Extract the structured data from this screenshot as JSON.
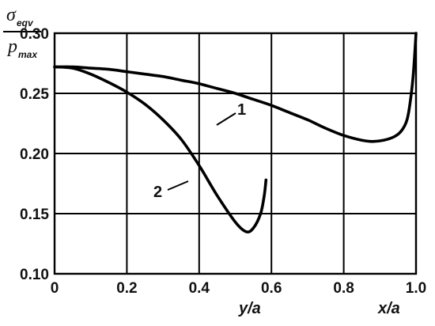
{
  "chart_data": {
    "type": "line",
    "ylabel": {
      "numerator": "σ",
      "numerator_sub": "eqv",
      "denominator": "p",
      "denominator_sub": "max"
    },
    "xlabels": [
      "y/a",
      "x/a"
    ],
    "xlim": [
      0,
      1.0
    ],
    "ylim": [
      0.1,
      0.3
    ],
    "grid": true,
    "x_ticks": [
      "0",
      "0.2",
      "0.4",
      "0.6",
      "0.8",
      "1.0"
    ],
    "y_ticks": [
      "0.10",
      "0.15",
      "0.20",
      "0.25",
      "0.30"
    ],
    "x_tick_values": [
      0,
      0.2,
      0.4,
      0.6,
      0.8,
      1.0
    ],
    "y_tick_values": [
      0.1,
      0.15,
      0.2,
      0.25,
      0.3
    ],
    "series": [
      {
        "name": "1",
        "x": [
          0,
          0.05,
          0.1,
          0.15,
          0.2,
          0.25,
          0.3,
          0.35,
          0.4,
          0.45,
          0.5,
          0.55,
          0.6,
          0.65,
          0.7,
          0.75,
          0.8,
          0.85,
          0.88,
          0.91,
          0.94,
          0.96,
          0.975,
          0.985,
          0.993,
          1.0
        ],
        "y": [
          0.272,
          0.272,
          0.271,
          0.27,
          0.268,
          0.266,
          0.264,
          0.261,
          0.258,
          0.254,
          0.25,
          0.245,
          0.24,
          0.234,
          0.228,
          0.221,
          0.215,
          0.211,
          0.21,
          0.211,
          0.214,
          0.219,
          0.228,
          0.245,
          0.268,
          0.3
        ]
      },
      {
        "name": "2",
        "x": [
          0,
          0.05,
          0.1,
          0.15,
          0.2,
          0.25,
          0.3,
          0.35,
          0.4,
          0.45,
          0.5,
          0.53,
          0.55,
          0.57,
          0.58,
          0.585
        ],
        "y": [
          0.272,
          0.271,
          0.266,
          0.259,
          0.251,
          0.241,
          0.228,
          0.212,
          0.19,
          0.165,
          0.143,
          0.135,
          0.138,
          0.15,
          0.165,
          0.178
        ]
      }
    ]
  }
}
